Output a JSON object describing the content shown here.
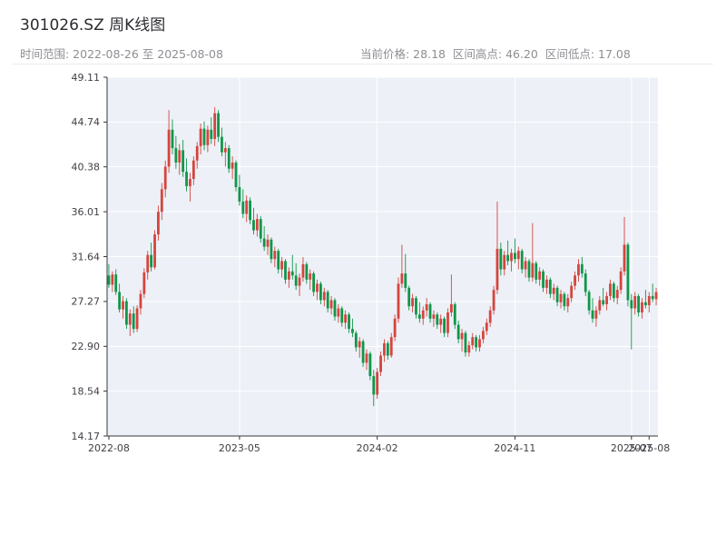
{
  "header": {
    "title": "301026.SZ 周K线图",
    "subtitle_left": "时间范围: 2022-08-26 至 2025-08-08",
    "subtitle_right": "当前价格: 28.18  区间高点: 46.20  区间低点: 17.08"
  },
  "chart_data": {
    "type": "candlestick",
    "title": "301026.SZ 周K线图",
    "symbol": "301026.SZ",
    "period": "weekly",
    "date_start": "2022-08-26",
    "date_end": "2025-08-08",
    "current_price": 28.18,
    "range_high": 46.2,
    "range_low": 17.08,
    "ylim": [
      14.17,
      49.11
    ],
    "y_ticks": [
      {
        "v": 14.17,
        "label": "14.17"
      },
      {
        "v": 18.54,
        "label": "18.54"
      },
      {
        "v": 22.9,
        "label": "22.90"
      },
      {
        "v": 27.27,
        "label": "27.27"
      },
      {
        "v": 31.64,
        "label": "31.64"
      },
      {
        "v": 36.01,
        "label": "36.01"
      },
      {
        "v": 40.38,
        "label": "40.38"
      },
      {
        "v": 44.74,
        "label": "44.74"
      },
      {
        "v": 49.11,
        "label": "49.11"
      }
    ],
    "x_ticks": [
      {
        "index": 0,
        "label": "2022-08"
      },
      {
        "index": 37,
        "label": "2023-05"
      },
      {
        "index": 76,
        "label": "2024-02"
      },
      {
        "index": 115,
        "label": "2024-11"
      },
      {
        "index": 148,
        "label": "2025-07"
      },
      {
        "index": 153,
        "label": "2025-08"
      }
    ],
    "up_color": "#d4453e",
    "down_color": "#109649",
    "plot_bg": "#edf0f7",
    "grid_color": "#ffffff",
    "axis_color": "#37373c",
    "ohlc": [
      [
        29.8,
        30.9,
        28.6,
        28.9
      ],
      [
        28.9,
        30.2,
        28.2,
        29.9
      ],
      [
        29.9,
        30.4,
        27.9,
        28.2
      ],
      [
        28.2,
        29.0,
        26.2,
        26.5
      ],
      [
        26.5,
        27.8,
        25.6,
        27.3
      ],
      [
        27.3,
        27.6,
        24.6,
        25.0
      ],
      [
        25.0,
        26.5,
        23.9,
        26.1
      ],
      [
        26.1,
        26.8,
        24.2,
        24.6
      ],
      [
        24.6,
        26.9,
        24.3,
        26.6
      ],
      [
        26.6,
        28.4,
        26.0,
        28.0
      ],
      [
        28.0,
        30.5,
        27.6,
        30.1
      ],
      [
        30.1,
        32.2,
        29.4,
        31.8
      ],
      [
        31.8,
        33.0,
        30.2,
        30.6
      ],
      [
        30.6,
        34.2,
        30.4,
        33.8
      ],
      [
        33.8,
        36.6,
        33.2,
        36.0
      ],
      [
        36.0,
        38.8,
        35.2,
        38.2
      ],
      [
        38.2,
        41.0,
        37.4,
        40.4
      ],
      [
        40.4,
        45.9,
        39.8,
        44.0
      ],
      [
        44.0,
        45.0,
        41.6,
        42.2
      ],
      [
        42.2,
        43.4,
        40.2,
        40.8
      ],
      [
        40.8,
        42.6,
        39.6,
        42.0
      ],
      [
        42.0,
        43.0,
        39.4,
        39.9
      ],
      [
        39.9,
        41.2,
        38.0,
        38.5
      ],
      [
        38.5,
        39.8,
        37.0,
        39.2
      ],
      [
        39.2,
        41.4,
        38.6,
        41.0
      ],
      [
        41.0,
        42.8,
        40.2,
        42.4
      ],
      [
        42.4,
        44.6,
        41.6,
        44.1
      ],
      [
        44.1,
        44.8,
        42.0,
        42.5
      ],
      [
        42.5,
        44.4,
        41.8,
        44.0
      ],
      [
        44.0,
        45.2,
        42.6,
        43.1
      ],
      [
        43.1,
        46.2,
        42.4,
        45.6
      ],
      [
        45.6,
        45.9,
        42.8,
        43.3
      ],
      [
        43.3,
        44.2,
        41.4,
        41.8
      ],
      [
        41.8,
        42.8,
        40.4,
        42.2
      ],
      [
        42.2,
        42.5,
        39.8,
        40.2
      ],
      [
        40.2,
        41.4,
        39.2,
        40.8
      ],
      [
        40.8,
        41.0,
        38.0,
        38.4
      ],
      [
        38.4,
        39.6,
        36.6,
        37.0
      ],
      [
        37.0,
        38.2,
        35.4,
        35.8
      ],
      [
        35.8,
        37.6,
        35.0,
        37.1
      ],
      [
        37.1,
        37.4,
        34.8,
        35.2
      ],
      [
        35.2,
        36.4,
        33.8,
        34.2
      ],
      [
        34.2,
        35.8,
        33.6,
        35.3
      ],
      [
        35.3,
        35.6,
        33.0,
        33.4
      ],
      [
        33.4,
        34.6,
        32.2,
        32.6
      ],
      [
        32.6,
        33.8,
        31.8,
        33.3
      ],
      [
        33.3,
        33.5,
        31.0,
        31.4
      ],
      [
        31.4,
        32.6,
        30.6,
        32.2
      ],
      [
        32.2,
        32.4,
        30.0,
        30.4
      ],
      [
        30.4,
        31.6,
        29.6,
        31.2
      ],
      [
        31.2,
        31.4,
        29.0,
        29.4
      ],
      [
        29.4,
        30.6,
        28.6,
        30.2
      ],
      [
        30.2,
        31.8,
        29.4,
        29.8
      ],
      [
        29.8,
        31.0,
        28.4,
        28.8
      ],
      [
        28.8,
        30.0,
        27.8,
        29.6
      ],
      [
        29.6,
        31.6,
        29.2,
        30.9
      ],
      [
        30.9,
        31.1,
        29.0,
        29.4
      ],
      [
        29.4,
        30.4,
        28.4,
        30.0
      ],
      [
        30.0,
        30.2,
        27.8,
        28.2
      ],
      [
        28.2,
        29.4,
        27.4,
        29.0
      ],
      [
        29.0,
        29.2,
        27.0,
        27.4
      ],
      [
        27.4,
        28.6,
        26.8,
        28.2
      ],
      [
        28.2,
        28.4,
        26.2,
        26.6
      ],
      [
        26.6,
        27.8,
        26.0,
        27.4
      ],
      [
        27.4,
        27.6,
        25.4,
        25.8
      ],
      [
        25.8,
        27.0,
        25.2,
        26.6
      ],
      [
        26.6,
        26.8,
        24.8,
        25.2
      ],
      [
        25.2,
        26.4,
        24.6,
        26.0
      ],
      [
        26.0,
        26.2,
        24.2,
        24.6
      ],
      [
        24.6,
        25.6,
        23.8,
        24.2
      ],
      [
        24.2,
        24.4,
        22.4,
        22.8
      ],
      [
        22.8,
        23.8,
        21.8,
        23.4
      ],
      [
        23.4,
        23.6,
        20.9,
        21.3
      ],
      [
        21.3,
        22.6,
        20.6,
        22.2
      ],
      [
        22.2,
        22.4,
        19.6,
        20.0
      ],
      [
        20.0,
        20.6,
        17.08,
        18.2
      ],
      [
        18.2,
        20.8,
        17.8,
        20.4
      ],
      [
        20.4,
        22.4,
        20.0,
        22.0
      ],
      [
        22.0,
        23.6,
        21.4,
        23.2
      ],
      [
        23.2,
        23.4,
        21.6,
        22.0
      ],
      [
        22.0,
        24.2,
        21.8,
        23.8
      ],
      [
        23.8,
        26.0,
        23.4,
        25.6
      ],
      [
        25.6,
        29.6,
        25.2,
        29.0
      ],
      [
        29.0,
        32.8,
        28.6,
        30.0
      ],
      [
        30.0,
        31.9,
        28.2,
        28.6
      ],
      [
        28.6,
        28.8,
        26.4,
        26.8
      ],
      [
        26.8,
        28.0,
        26.2,
        27.6
      ],
      [
        27.6,
        27.8,
        25.6,
        26.0
      ],
      [
        26.0,
        27.2,
        25.2,
        25.6
      ],
      [
        25.6,
        26.8,
        25.0,
        26.4
      ],
      [
        26.4,
        27.6,
        25.8,
        27.0
      ],
      [
        27.0,
        27.2,
        25.2,
        25.6
      ],
      [
        25.6,
        26.4,
        24.8,
        26.0
      ],
      [
        26.0,
        26.2,
        24.6,
        25.0
      ],
      [
        25.0,
        26.0,
        24.2,
        25.6
      ],
      [
        25.6,
        25.8,
        23.8,
        24.2
      ],
      [
        24.2,
        26.6,
        23.8,
        26.2
      ],
      [
        26.2,
        29.9,
        25.8,
        27.0
      ],
      [
        27.0,
        27.2,
        24.6,
        25.0
      ],
      [
        25.0,
        25.4,
        23.2,
        23.6
      ],
      [
        23.6,
        24.6,
        22.4,
        24.2
      ],
      [
        24.2,
        24.4,
        21.9,
        22.3
      ],
      [
        22.3,
        23.4,
        21.9,
        23.0
      ],
      [
        23.0,
        24.2,
        22.6,
        23.8
      ],
      [
        23.8,
        24.0,
        22.4,
        22.8
      ],
      [
        22.8,
        24.0,
        22.4,
        23.6
      ],
      [
        23.6,
        24.8,
        23.2,
        24.4
      ],
      [
        24.4,
        25.6,
        24.0,
        25.2
      ],
      [
        25.2,
        26.8,
        24.8,
        26.4
      ],
      [
        26.4,
        28.8,
        26.0,
        28.4
      ],
      [
        28.4,
        37.0,
        28.0,
        32.4
      ],
      [
        32.4,
        33.0,
        29.8,
        30.4
      ],
      [
        30.4,
        32.2,
        29.8,
        31.8
      ],
      [
        31.8,
        33.2,
        30.8,
        31.2
      ],
      [
        31.2,
        32.4,
        30.2,
        32.0
      ],
      [
        32.0,
        33.4,
        31.0,
        31.4
      ],
      [
        31.4,
        32.6,
        30.4,
        32.2
      ],
      [
        32.2,
        32.4,
        30.0,
        30.4
      ],
      [
        30.4,
        31.6,
        29.6,
        31.2
      ],
      [
        31.2,
        31.4,
        29.2,
        29.6
      ],
      [
        29.6,
        34.9,
        29.2,
        31.0
      ],
      [
        31.0,
        31.2,
        29.0,
        29.4
      ],
      [
        29.4,
        30.6,
        28.8,
        30.2
      ],
      [
        30.2,
        30.4,
        28.2,
        28.6
      ],
      [
        28.6,
        29.8,
        28.0,
        29.4
      ],
      [
        29.4,
        29.6,
        27.6,
        28.0
      ],
      [
        28.0,
        29.0,
        27.4,
        28.6
      ],
      [
        28.6,
        28.8,
        26.8,
        27.2
      ],
      [
        27.2,
        28.4,
        26.6,
        28.0
      ],
      [
        28.0,
        28.2,
        26.4,
        26.8
      ],
      [
        26.8,
        28.0,
        26.2,
        27.6
      ],
      [
        27.6,
        29.2,
        27.2,
        28.8
      ],
      [
        28.8,
        30.2,
        28.4,
        29.8
      ],
      [
        29.8,
        31.4,
        29.2,
        30.9
      ],
      [
        30.9,
        31.6,
        29.6,
        30.0
      ],
      [
        30.0,
        30.4,
        27.8,
        28.2
      ],
      [
        28.2,
        28.4,
        26.0,
        26.4
      ],
      [
        26.4,
        27.6,
        25.2,
        25.6
      ],
      [
        25.6,
        26.8,
        24.8,
        26.4
      ],
      [
        26.4,
        27.8,
        26.0,
        27.4
      ],
      [
        27.4,
        28.6,
        26.8,
        27.0
      ],
      [
        27.0,
        28.2,
        26.4,
        27.8
      ],
      [
        27.8,
        29.4,
        27.4,
        29.0
      ],
      [
        29.0,
        29.2,
        27.2,
        27.6
      ],
      [
        27.6,
        28.8,
        27.0,
        28.4
      ],
      [
        28.4,
        30.6,
        28.0,
        30.2
      ],
      [
        30.2,
        35.5,
        29.8,
        32.8
      ],
      [
        32.8,
        33.0,
        26.8,
        27.4
      ],
      [
        27.4,
        28.0,
        22.6,
        26.6
      ],
      [
        26.6,
        28.2,
        26.0,
        27.8
      ],
      [
        27.8,
        28.0,
        25.8,
        26.2
      ],
      [
        26.2,
        27.6,
        25.6,
        27.2
      ],
      [
        27.2,
        28.4,
        26.6,
        26.9
      ],
      [
        26.9,
        28.2,
        26.2,
        27.8
      ],
      [
        27.8,
        29.0,
        27.2,
        27.5
      ],
      [
        27.5,
        28.6,
        26.9,
        28.18
      ]
    ]
  }
}
